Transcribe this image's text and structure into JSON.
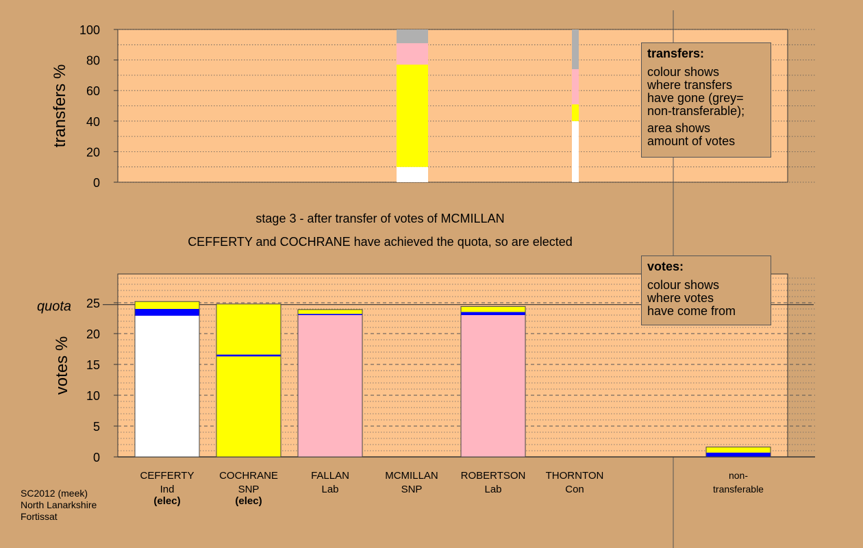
{
  "chart_data": [
    {
      "type": "bar",
      "ylabel": "transfers %",
      "ylim": [
        0,
        100
      ],
      "yticks": [
        0,
        20,
        40,
        60,
        80,
        100
      ],
      "stacked": true,
      "bars": [
        {
          "category": "MCMILLAN",
          "segments": [
            {
              "from": 0,
              "to": 10,
              "color": "#ffffff"
            },
            {
              "from": 10,
              "to": 77,
              "color": "#ffff00"
            },
            {
              "from": 77,
              "to": 91,
              "color": "#ffb6c1"
            },
            {
              "from": 91,
              "to": 100,
              "color": "#b0b0b0"
            }
          ]
        },
        {
          "category": "THORNTON",
          "segments": [
            {
              "from": 0,
              "to": 40,
              "color": "#ffffff"
            },
            {
              "from": 40,
              "to": 51,
              "color": "#ffff00"
            },
            {
              "from": 51,
              "to": 74,
              "color": "#ffb6c1"
            },
            {
              "from": 74,
              "to": 100,
              "color": "#b0b0b0"
            }
          ]
        }
      ],
      "legend": {
        "title": "transfers:",
        "lines": [
          "colour shows",
          "where transfers",
          "have gone (grey=",
          "non-transferable);"
        ],
        "lines2": [
          "area shows",
          "amount of votes"
        ]
      }
    },
    {
      "type": "bar",
      "ylabel": "votes %",
      "ylim": [
        0,
        25
      ],
      "yticks": [
        0,
        5,
        10,
        15,
        20,
        25
      ],
      "stacked": true,
      "quota": {
        "label": "quota",
        "value": 24.7
      },
      "categories": [
        {
          "name": "CEFFERTY",
          "party": "Ind",
          "status": "(elec)"
        },
        {
          "name": "COCHRANE",
          "party": "SNP",
          "status": "(elec)"
        },
        {
          "name": "FALLAN",
          "party": "Lab",
          "status": ""
        },
        {
          "name": "MCMILLAN",
          "party": "SNP",
          "status": ""
        },
        {
          "name": "ROBERTSON",
          "party": "Lab",
          "status": ""
        },
        {
          "name": "THORNTON",
          "party": "Con",
          "status": ""
        },
        {
          "name": "non-",
          "party": "transferable",
          "status": ""
        }
      ],
      "bars": [
        {
          "category": "CEFFERTY",
          "segments": [
            {
              "from": 0,
              "to": 22.9,
              "color": "#ffffff"
            },
            {
              "from": 22.9,
              "to": 24.0,
              "color": "#0000ff"
            },
            {
              "from": 24.0,
              "to": 25.2,
              "color": "#ffff00"
            }
          ]
        },
        {
          "category": "COCHRANE",
          "segments": [
            {
              "from": 0,
              "to": 16.3,
              "color": "#ffff00"
            },
            {
              "from": 16.3,
              "to": 16.6,
              "color": "#0000ff"
            },
            {
              "from": 16.6,
              "to": 24.8,
              "color": "#ffff00"
            }
          ]
        },
        {
          "category": "FALLAN",
          "segments": [
            {
              "from": 0,
              "to": 23.0,
              "color": "#ffb6c1"
            },
            {
              "from": 23.0,
              "to": 23.2,
              "color": "#0000ff"
            },
            {
              "from": 23.2,
              "to": 23.9,
              "color": "#ffff00"
            }
          ]
        },
        {
          "category": "MCMILLAN",
          "segments": []
        },
        {
          "category": "ROBERTSON",
          "segments": [
            {
              "from": 0,
              "to": 23.0,
              "color": "#ffb6c1"
            },
            {
              "from": 23.0,
              "to": 23.5,
              "color": "#0000ff"
            },
            {
              "from": 23.5,
              "to": 24.4,
              "color": "#ffff00"
            }
          ]
        },
        {
          "category": "THORNTON",
          "segments": []
        },
        {
          "category": "non-transferable",
          "segments": [
            {
              "from": 0,
              "to": 0.7,
              "color": "#0000ff"
            },
            {
              "from": 0.7,
              "to": 1.6,
              "color": "#ffff00"
            }
          ]
        }
      ],
      "legend": {
        "title": "votes:",
        "lines": [
          "colour shows",
          "where votes",
          "have come from"
        ]
      }
    }
  ],
  "captions": {
    "stage": "stage 3 - after transfer of votes of MCMILLAN",
    "elected": "CEFFERTY and COCHRANE have achieved the quota, so are elected"
  },
  "footer": [
    "SC2012 (meek)",
    "North Lanarkshire",
    "Fortissat"
  ],
  "colors": {
    "background": "#d2a574",
    "plot_bg": "#fdc48d"
  }
}
